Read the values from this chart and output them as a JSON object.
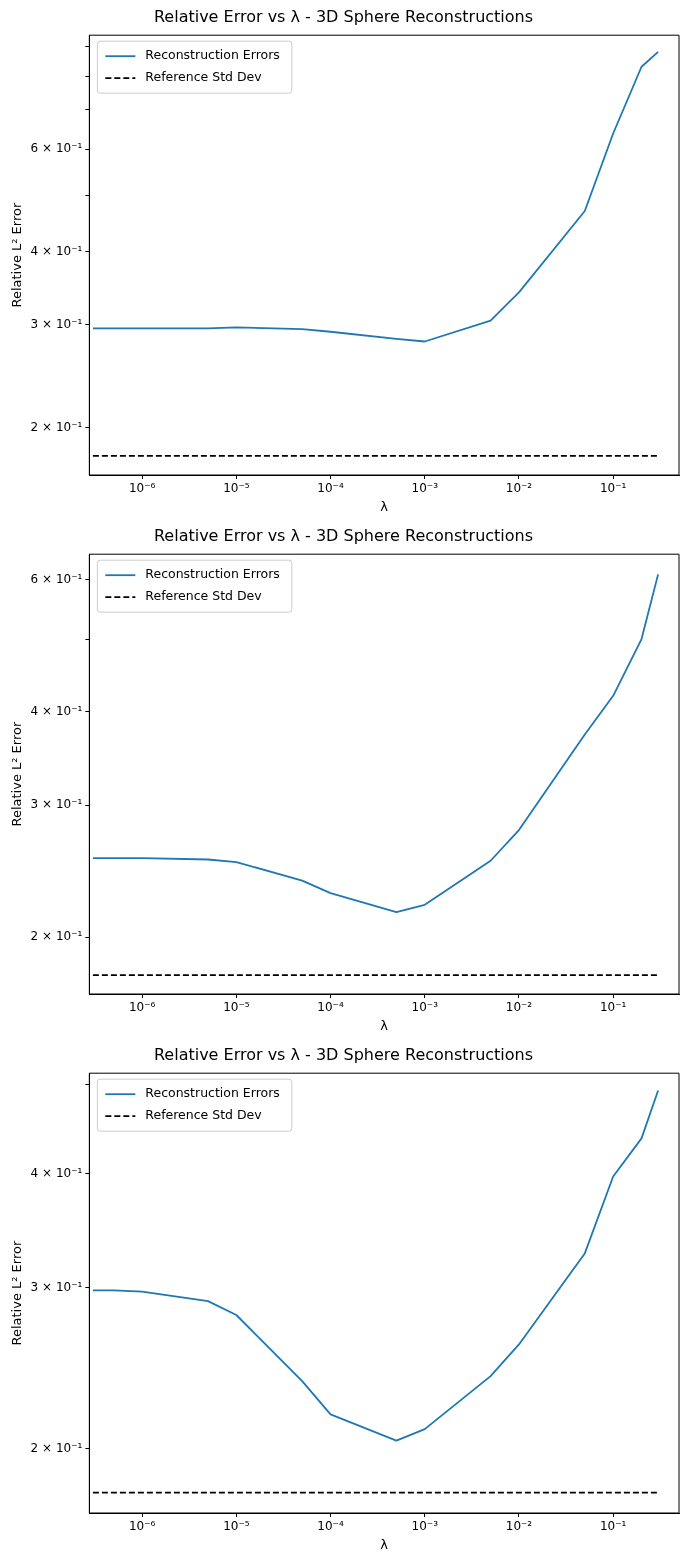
{
  "chart_data": [
    {
      "type": "line",
      "title": "Relative Error vs λ - 3D Sphere Reconstructions",
      "xlabel": "λ",
      "ylabel": "Relative L² Error",
      "log": "xy",
      "legend": "top left",
      "grid": false,
      "marker": "none",
      "xlim": [
        2.75e-07,
        0.5
      ],
      "ylim": [
        0.166,
        0.94
      ],
      "xticks": [
        {
          "value": 1e-06,
          "label": "10⁻⁶"
        },
        {
          "value": 1e-05,
          "label": "10⁻⁵"
        },
        {
          "value": 0.0001,
          "label": "10⁻⁴"
        },
        {
          "value": 0.001,
          "label": "10⁻³"
        },
        {
          "value": 0.01,
          "label": "10⁻²"
        },
        {
          "value": 0.1,
          "label": "10⁻¹"
        }
      ],
      "yticks": [
        {
          "value": 0.2,
          "label": "2 × 10⁻¹"
        },
        {
          "value": 0.3,
          "label": "3 × 10⁻¹"
        },
        {
          "value": 0.4,
          "label": "4 × 10⁻¹"
        },
        {
          "value": 0.5,
          "label": null
        },
        {
          "value": 0.6,
          "label": "6 × 10⁻¹"
        },
        {
          "value": 0.7,
          "label": null
        },
        {
          "value": 0.8,
          "label": null
        },
        {
          "value": 0.9,
          "label": null
        }
      ],
      "series": [
        {
          "name": "Reconstruction Errors",
          "color": "#1f77b4",
          "line_style": "solid",
          "x": [
            3e-07,
            5e-07,
            1e-06,
            5e-06,
            1e-05,
            5e-05,
            0.0001,
            0.0005,
            0.001,
            0.005,
            0.01,
            0.05,
            0.1,
            0.2,
            0.3
          ],
          "values": [
            0.296,
            0.296,
            0.296,
            0.296,
            0.297,
            0.295,
            0.292,
            0.284,
            0.281,
            0.305,
            0.341,
            0.47,
            0.638,
            0.83,
            0.88
          ]
        },
        {
          "name": "Reference Std Dev",
          "color": "#000000",
          "line_style": "dashed",
          "x": [
            3e-07,
            0.3
          ],
          "values": [
            0.179,
            0.179
          ]
        }
      ]
    },
    {
      "type": "line",
      "title": "Relative Error vs λ - 3D Sphere Reconstructions",
      "xlabel": "λ",
      "ylabel": "Relative L² Error",
      "log": "xy",
      "legend": "top left",
      "grid": false,
      "marker": "none",
      "xlim": [
        2.75e-07,
        0.5
      ],
      "ylim": [
        0.168,
        0.649
      ],
      "xticks": [
        {
          "value": 1e-06,
          "label": "10⁻⁶"
        },
        {
          "value": 1e-05,
          "label": "10⁻⁵"
        },
        {
          "value": 0.0001,
          "label": "10⁻⁴"
        },
        {
          "value": 0.001,
          "label": "10⁻³"
        },
        {
          "value": 0.01,
          "label": "10⁻²"
        },
        {
          "value": 0.1,
          "label": "10⁻¹"
        }
      ],
      "yticks": [
        {
          "value": 0.2,
          "label": "2 × 10⁻¹"
        },
        {
          "value": 0.3,
          "label": "3 × 10⁻¹"
        },
        {
          "value": 0.4,
          "label": "4 × 10⁻¹"
        },
        {
          "value": 0.5,
          "label": null
        },
        {
          "value": 0.6,
          "label": "6 × 10⁻¹"
        }
      ],
      "series": [
        {
          "name": "Reconstruction Errors",
          "color": "#1f77b4",
          "line_style": "solid",
          "x": [
            3e-07,
            5e-07,
            1e-06,
            5e-06,
            1e-05,
            5e-05,
            0.0001,
            0.0005,
            0.001,
            0.005,
            0.01,
            0.05,
            0.1,
            0.2,
            0.3
          ],
          "values": [
            0.255,
            0.255,
            0.255,
            0.254,
            0.252,
            0.238,
            0.229,
            0.216,
            0.221,
            0.253,
            0.278,
            0.373,
            0.42,
            0.5,
            0.61
          ]
        },
        {
          "name": "Reference Std Dev",
          "color": "#000000",
          "line_style": "dashed",
          "x": [
            3e-07,
            0.3
          ],
          "values": [
            0.178,
            0.178
          ]
        }
      ]
    },
    {
      "type": "line",
      "title": "Relative Error vs λ - 3D Sphere Reconstructions",
      "xlabel": "λ",
      "ylabel": "Relative L² Error",
      "log": "xy",
      "legend": "top left",
      "grid": false,
      "marker": "none",
      "xlim": [
        2.75e-07,
        0.5
      ],
      "ylim": [
        0.17,
        0.515
      ],
      "xticks": [
        {
          "value": 1e-06,
          "label": "10⁻⁶"
        },
        {
          "value": 1e-05,
          "label": "10⁻⁵"
        },
        {
          "value": 0.0001,
          "label": "10⁻⁴"
        },
        {
          "value": 0.001,
          "label": "10⁻³"
        },
        {
          "value": 0.01,
          "label": "10⁻²"
        },
        {
          "value": 0.1,
          "label": "10⁻¹"
        }
      ],
      "yticks": [
        {
          "value": 0.2,
          "label": "2 × 10⁻¹"
        },
        {
          "value": 0.3,
          "label": "3 × 10⁻¹"
        },
        {
          "value": 0.4,
          "label": "4 × 10⁻¹"
        },
        {
          "value": 0.5,
          "label": null
        }
      ],
      "series": [
        {
          "name": "Reconstruction Errors",
          "color": "#1f77b4",
          "line_style": "solid",
          "x": [
            3e-07,
            5e-07,
            1e-06,
            5e-06,
            1e-05,
            5e-05,
            0.0001,
            0.0005,
            0.001,
            0.005,
            0.01,
            0.05,
            0.1,
            0.2,
            0.3
          ],
          "values": [
            0.298,
            0.298,
            0.297,
            0.29,
            0.28,
            0.237,
            0.218,
            0.204,
            0.21,
            0.24,
            0.26,
            0.327,
            0.397,
            0.437,
            0.493
          ]
        },
        {
          "name": "Reference Std Dev",
          "color": "#000000",
          "line_style": "dashed",
          "x": [
            3e-07,
            0.3
          ],
          "values": [
            0.179,
            0.179
          ]
        }
      ]
    }
  ]
}
